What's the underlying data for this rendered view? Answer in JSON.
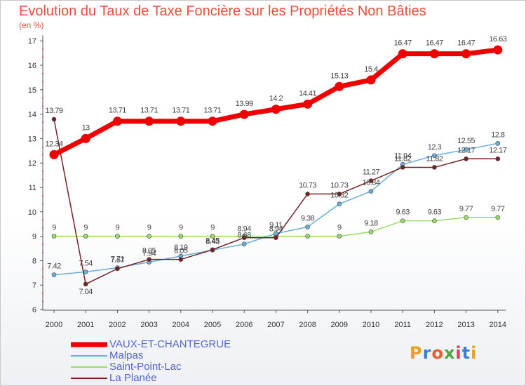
{
  "header": {
    "title": "Evolution du Taux de Taxe Foncière sur les Propriétés Non Bâties",
    "subtitle": "(en %)"
  },
  "chart_data": {
    "type": "line",
    "title": "Evolution du Taux de Taxe Foncière sur les Propriétés Non Bâties",
    "ylabel": "(en %)",
    "xlabel": "",
    "x": [
      "2000",
      "2001",
      "2002",
      "2003",
      "2004",
      "2005",
      "2006",
      "2007",
      "2008",
      "2009",
      "2010",
      "2011",
      "2012",
      "2013",
      "2014"
    ],
    "ylim": [
      6,
      17
    ],
    "yticks": [
      6,
      7,
      8,
      9,
      10,
      11,
      12,
      13,
      14,
      15,
      16,
      17
    ],
    "grid": false,
    "legend_position": "bottom-left",
    "series": [
      {
        "name": "VAUX-ET-CHANTEGRUE",
        "color": "#ee0000",
        "values": [
          12.34,
          13,
          13.71,
          13.71,
          13.71,
          13.71,
          13.99,
          14.2,
          14.41,
          15.13,
          15.4,
          16.47,
          16.47,
          16.47,
          16.63
        ],
        "labels": [
          "12.34",
          "13",
          "13.71",
          "13.71",
          "13.71",
          "13.71",
          "13.99",
          "14.2",
          "14.41",
          "15.13",
          "15.4",
          "16.47",
          "16.47",
          "16.47",
          "16.63"
        ]
      },
      {
        "name": "Malpas",
        "color": "#6aaedc",
        "values": [
          7.42,
          7.54,
          7.71,
          7.94,
          8.19,
          8.43,
          8.68,
          9.11,
          9.38,
          10.32,
          10.84,
          11.94,
          12.3,
          12.55,
          12.8
        ],
        "labels": [
          "7.42",
          "7.54",
          "7.71",
          "7.94",
          "8.19",
          "8.43",
          "8.68",
          "9.11",
          "9.38",
          "10.32",
          "10.84",
          "11.94",
          "12.3",
          "12.55",
          "12.8"
        ]
      },
      {
        "name": "Saint-Point-Lac",
        "color": "#99dd66",
        "values": [
          9,
          9,
          9,
          9,
          9,
          9,
          9,
          9,
          9,
          9,
          9.18,
          9.63,
          9.63,
          9.77,
          9.77
        ],
        "labels": [
          "9",
          "9",
          "9",
          "9",
          "9",
          "9",
          "",
          "",
          "",
          "9",
          "9.18",
          "9.63",
          "9.63",
          "9.77",
          "9.77"
        ]
      },
      {
        "name": "La Planée",
        "color": "#772222",
        "values": [
          13.79,
          7.04,
          7.67,
          8.05,
          8.05,
          8.45,
          8.94,
          8.94,
          10.73,
          10.73,
          11.27,
          11.82,
          11.82,
          12.17,
          12.17
        ],
        "labels": [
          "13.79",
          "7.04",
          "7.67",
          "8.05",
          "8.05",
          "8.45",
          "8.94",
          "8.94",
          "10.73",
          "10.73",
          "11.27",
          "11.82",
          "11.82",
          "12.17",
          "12.17"
        ]
      }
    ]
  },
  "logo": {
    "text": "Proxiti",
    "letters": [
      {
        "char": "P",
        "color": "#e8a020"
      },
      {
        "char": "r",
        "color": "#3a7fcf"
      },
      {
        "char": "o",
        "color": "#ec5b2a"
      },
      {
        "char": "x",
        "color": "#4aa844"
      },
      {
        "char": "i",
        "color": "#e04050"
      },
      {
        "char": "t",
        "color": "#3a7fcf"
      },
      {
        "char": "i",
        "color": "#e8a020"
      }
    ]
  }
}
